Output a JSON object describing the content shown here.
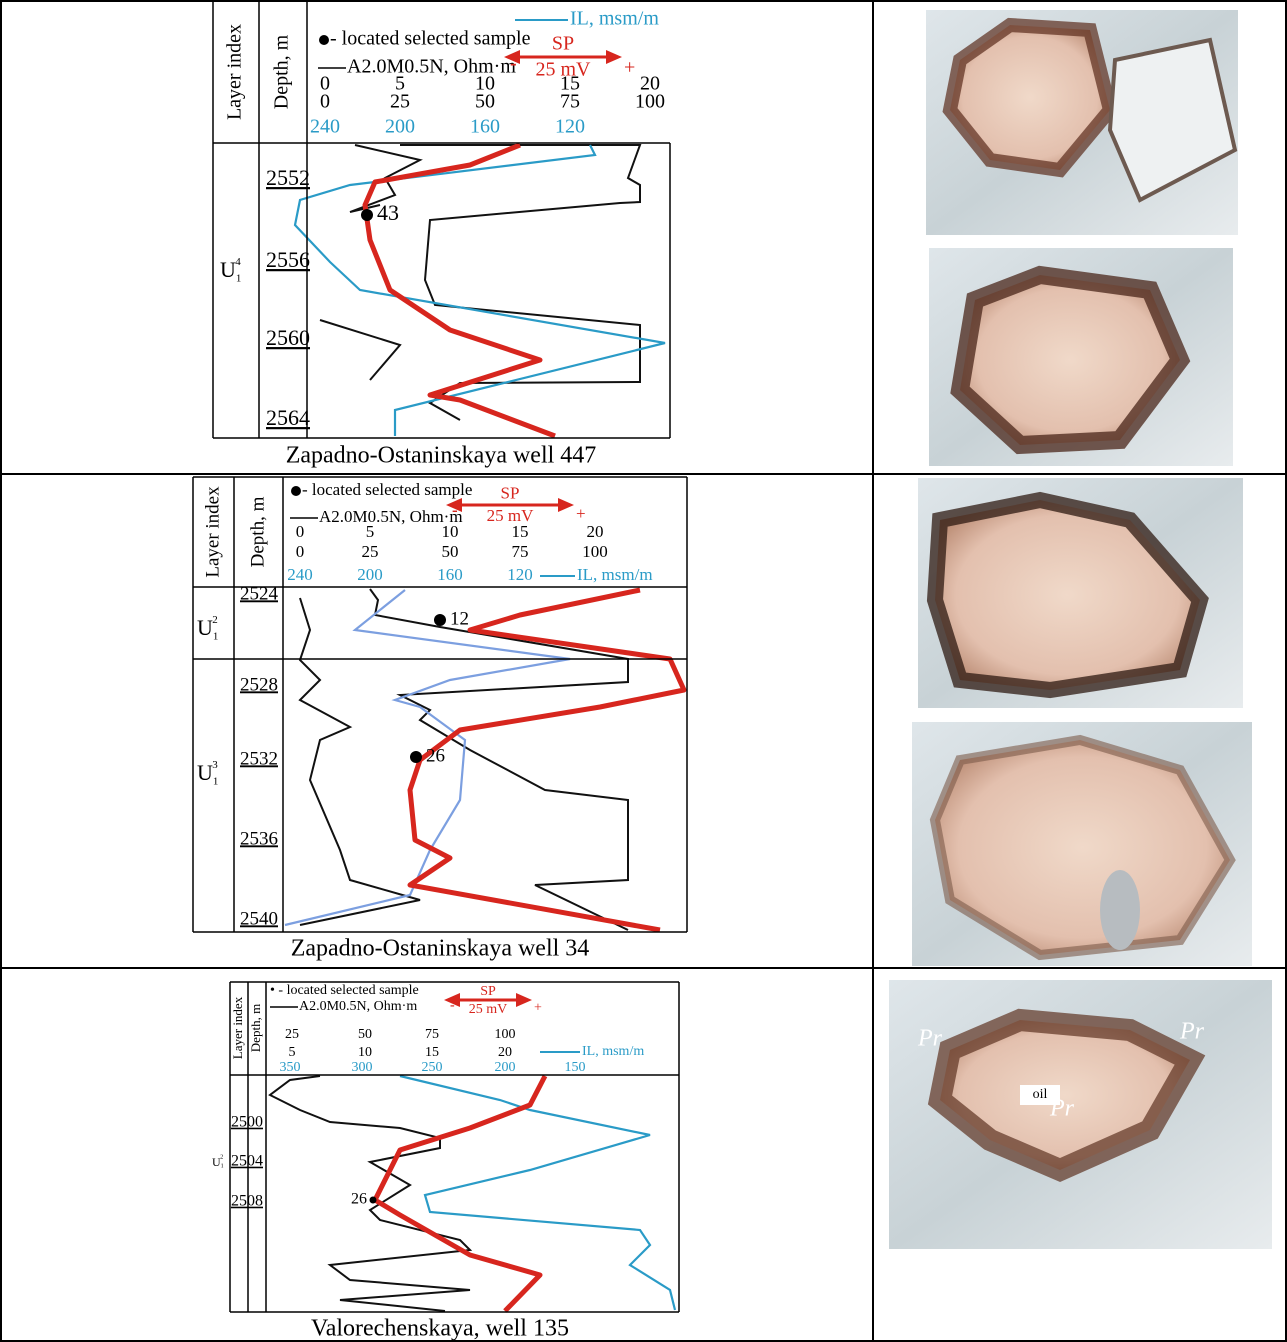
{
  "rows": [
    {
      "log": {
        "layer_index_header": "Layer index",
        "depth_header": "Depth, m",
        "legend": {
          "sample": "- located selected sample",
          "resistivity": "A2.0M0.5N, Ohm·m",
          "sp": "SP",
          "sp_scale": "25 mV",
          "sp_minus": "-",
          "sp_plus": "+",
          "il": "IL, msm/m"
        },
        "scale_rows": [
          [
            0,
            5,
            10,
            15,
            20
          ],
          [
            0,
            25,
            50,
            75,
            100
          ],
          [
            240,
            200,
            160,
            120
          ]
        ],
        "depths": [
          2552,
          2556,
          2560,
          2564
        ],
        "layers": [
          {
            "base": "U",
            "sub": "1",
            "sup": "4"
          }
        ],
        "samples": [
          43
        ],
        "caption": "Zapadno-Ostaninskaya well 447"
      }
    },
    {
      "log": {
        "layer_index_header": "Layer index",
        "depth_header": "Depth, m",
        "legend": {
          "sample": "- located selected sample",
          "resistivity": "A2.0M0.5N, Ohm·m",
          "sp": "SP",
          "sp_scale": "25 mV",
          "sp_minus": "-",
          "sp_plus": "+",
          "il": "IL, msm/m"
        },
        "scale_rows": [
          [
            0,
            5,
            10,
            15,
            20
          ],
          [
            0,
            25,
            50,
            75,
            100
          ],
          [
            240,
            200,
            160,
            120
          ]
        ],
        "depths": [
          2524,
          2528,
          2532,
          2536,
          2540
        ],
        "layers": [
          {
            "base": "U",
            "sub": "1",
            "sup": "2"
          },
          {
            "base": "U",
            "sub": "1",
            "sup": "3"
          }
        ],
        "samples": [
          12,
          26
        ],
        "caption": "Zapadno-Ostaninskaya well 34"
      }
    },
    {
      "log": {
        "layer_index_header": "Layer index",
        "depth_header": "Depth, m",
        "legend": {
          "sample": "• - located selected sample",
          "resistivity": "A2.0M0.5N, Ohm·m",
          "sp": "SP",
          "sp_scale": "25 mV",
          "sp_minus": "-",
          "sp_plus": "+",
          "il": "IL, msm/m"
        },
        "scale_rows": [
          [
            25,
            50,
            75,
            100
          ],
          [
            5,
            10,
            15,
            20
          ],
          [
            350,
            300,
            250,
            200,
            150
          ]
        ],
        "depths": [
          2500,
          2504,
          2508
        ],
        "layers": [
          {
            "base": "U",
            "sub": "1",
            "sup": "2"
          }
        ],
        "samples": [
          26
        ],
        "caption": "Valorechenskaya, well 135"
      },
      "photo_labels": [
        "Pr",
        "Pr",
        "Pr",
        "oil"
      ]
    }
  ]
}
